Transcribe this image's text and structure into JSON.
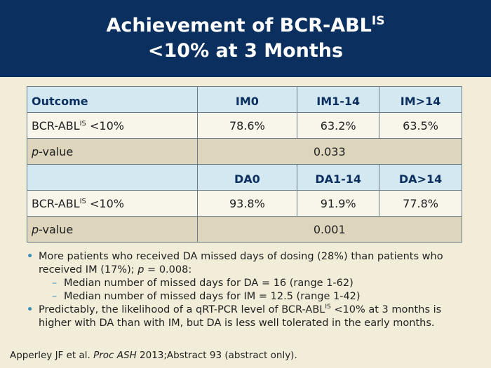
{
  "title": {
    "line1_main": "Achievement of BCR-ABL",
    "line1_sup": "IS",
    "line2": "<10% at 3 Months"
  },
  "table": {
    "im_header": {
      "outcome": "Outcome",
      "c1": "IM0",
      "c2": "IM1-14",
      "c3": "IM>14"
    },
    "im_row": {
      "label_main": "BCR-ABL",
      "label_sup": "IS",
      "label_rest": " <10%",
      "c1": "78.6%",
      "c2": "63.2%",
      "c3": "63.5%"
    },
    "im_pvalue": {
      "label_italic": "p",
      "label_rest": "-value",
      "value": "0.033"
    },
    "da_header": {
      "outcome": "",
      "c1": "DA0",
      "c2": "DA1-14",
      "c3": "DA>14"
    },
    "da_row": {
      "label_main": "BCR-ABL",
      "label_sup": "IS",
      "label_rest": " <10%",
      "c1": "93.8%",
      "c2": "91.9%",
      "c3": "77.8%"
    },
    "da_pvalue": {
      "label_italic": "p",
      "label_rest": "-value",
      "value": "0.001"
    }
  },
  "bullets": {
    "b1_text": "More patients who received DA missed days of dosing (28%) than patients who received IM (17%); ",
    "b1_p": "p",
    "b1_end": " = 0.008:",
    "sub1": "Median number of missed days for DA = 16 (range 1-62)",
    "sub2": "Median number of missed days for IM = 12.5 (range 1-42)",
    "b2_start": "Predictably, the likelihood of a qRT-PCR level of BCR-ABL",
    "b2_sup": "IS",
    "b2_end": " <10% at 3 months is higher with DA than with IM, but DA is less well tolerated in the early months."
  },
  "citation": {
    "start": "Apperley JF et al. ",
    "italic": "Proc ASH",
    "end": " 2013;Abstract 93 (abstract only)."
  }
}
